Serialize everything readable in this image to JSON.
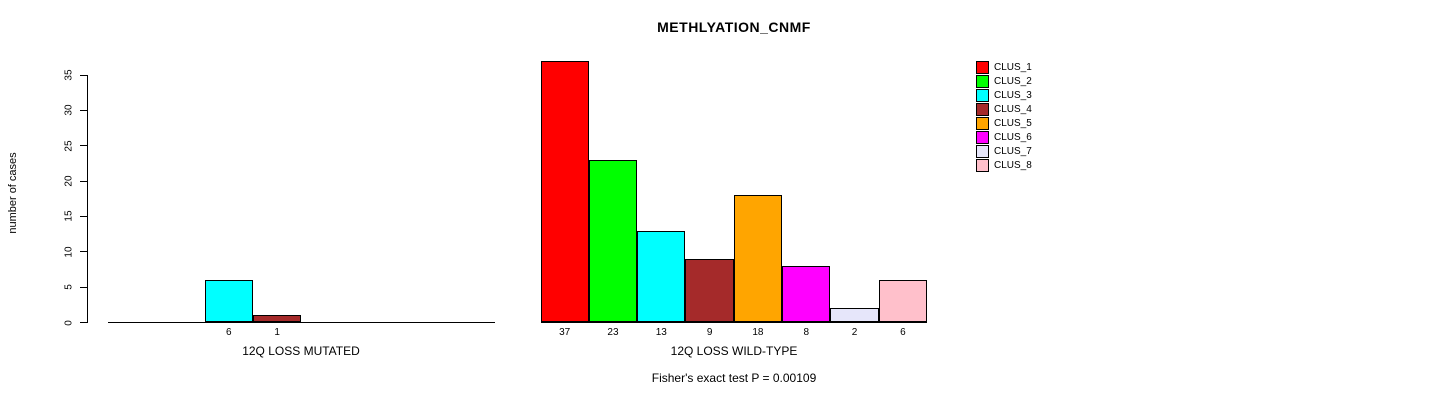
{
  "title": "METHLYATION_CNMF",
  "footer": "Fisher's exact test P = 0.00109",
  "y_axis": {
    "label": "number of cases",
    "ticks": [
      0,
      5,
      10,
      15,
      20,
      25,
      30,
      35
    ]
  },
  "legend": {
    "position": "right",
    "items": [
      {
        "label": "CLUS_1",
        "color": "#FF0000"
      },
      {
        "label": "CLUS_2",
        "color": "#00FF00"
      },
      {
        "label": "CLUS_3",
        "color": "#00FFFF"
      },
      {
        "label": "CLUS_4",
        "color": "#A52A2A"
      },
      {
        "label": "CLUS_5",
        "color": "#FFA500"
      },
      {
        "label": "CLUS_6",
        "color": "#FF00FF"
      },
      {
        "label": "CLUS_7",
        "color": "#E6E6FA"
      },
      {
        "label": "CLUS_8",
        "color": "#FFC0CB"
      }
    ]
  },
  "chart_data": {
    "type": "bar",
    "title": "METHLYATION_CNMF",
    "ylabel": "number of cases",
    "xlabel": "",
    "ylim": [
      0,
      35
    ],
    "yticks": [
      0,
      5,
      10,
      15,
      20,
      25,
      30,
      35
    ],
    "grid": false,
    "legend_position": "right",
    "clusters": [
      "CLUS_1",
      "CLUS_2",
      "CLUS_3",
      "CLUS_4",
      "CLUS_5",
      "CLUS_6",
      "CLUS_7",
      "CLUS_8"
    ],
    "colors": [
      "#FF0000",
      "#00FF00",
      "#00FFFF",
      "#A52A2A",
      "#FFA500",
      "#FF00FF",
      "#E6E6FA",
      "#FFC0CB"
    ],
    "groups": [
      {
        "label": "12Q LOSS MUTATED",
        "values": [
          0,
          0,
          6,
          1,
          0,
          0,
          0,
          0
        ]
      },
      {
        "label": "12Q LOSS WILD-TYPE",
        "values": [
          37,
          23,
          13,
          9,
          18,
          8,
          2,
          6
        ]
      }
    ],
    "annotation": "Fisher's exact test P = 0.00109"
  }
}
